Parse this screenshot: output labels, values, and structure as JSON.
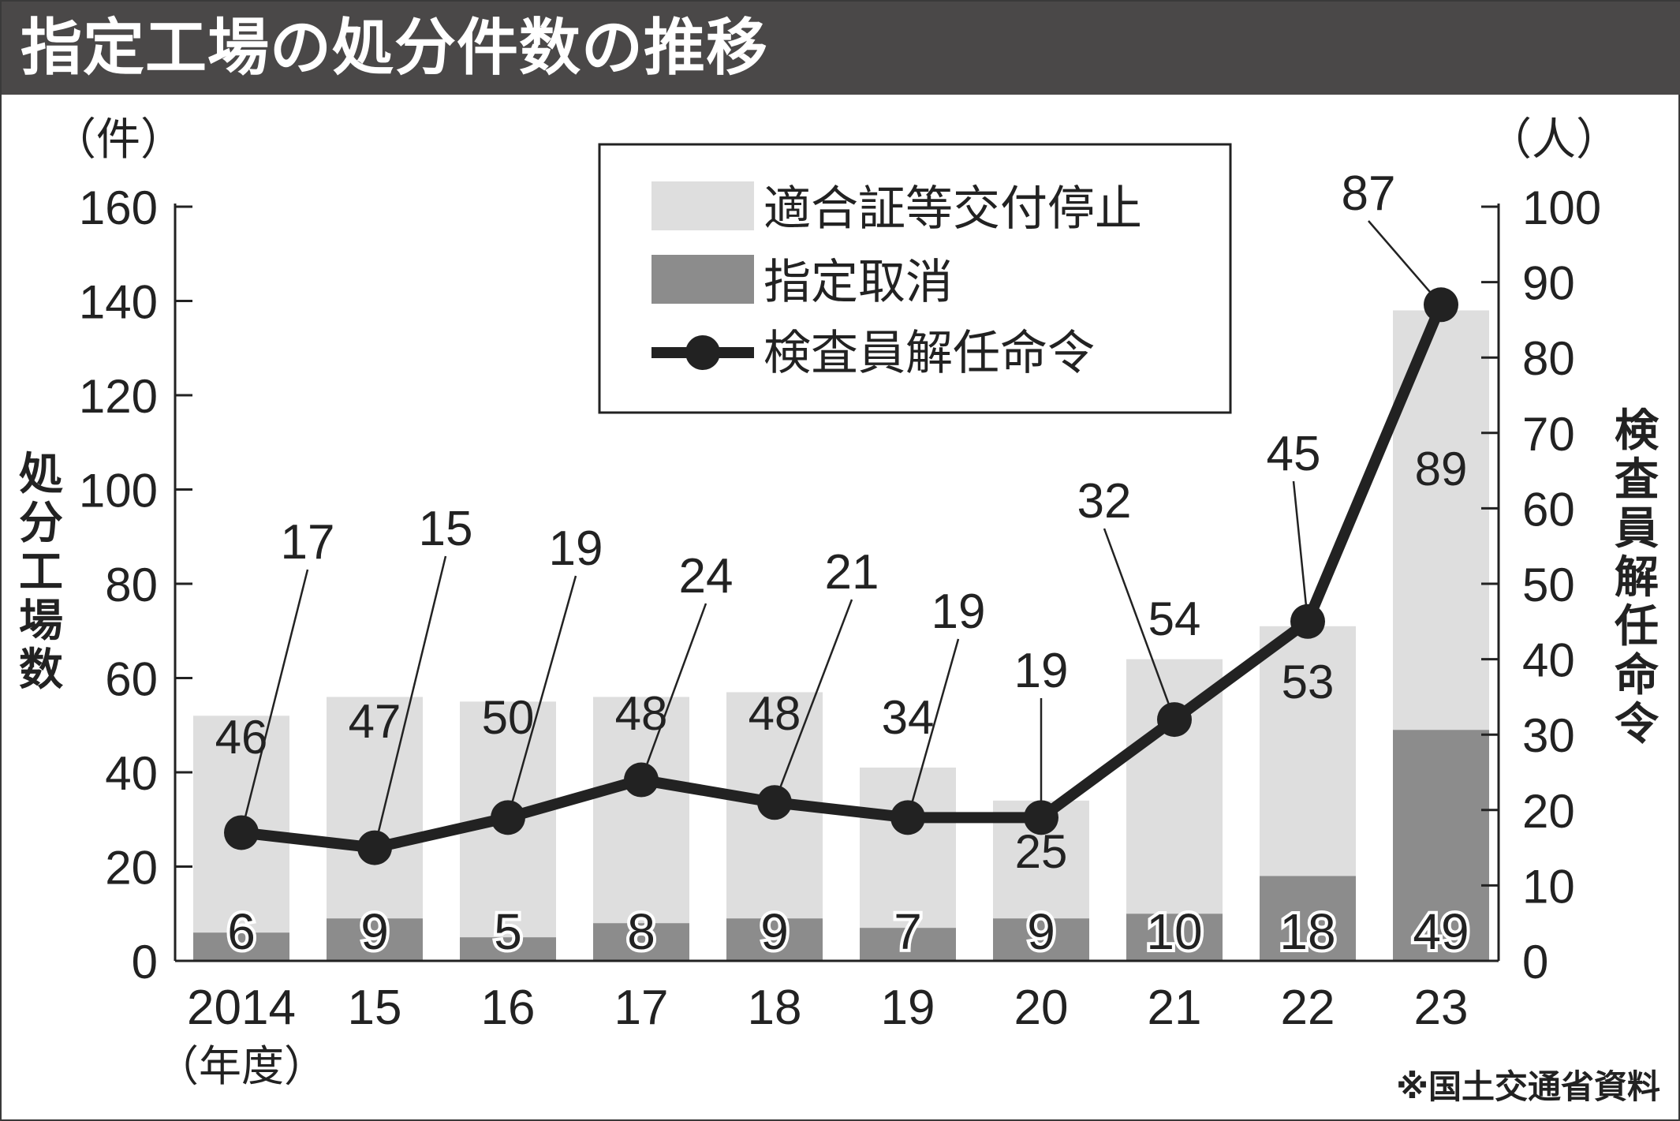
{
  "title": "指定工場の処分件数の推移",
  "source": "※国土交通省資料",
  "chart_data": {
    "type": "bar",
    "categories": [
      "2014",
      "15",
      "16",
      "17",
      "18",
      "19",
      "20",
      "21",
      "22",
      "23"
    ],
    "x_unit_label": "（年度）",
    "series": [
      {
        "name": "指定取消",
        "type": "bar",
        "stack": "total",
        "axis": "left",
        "color": "#8c8c8c",
        "values": [
          6,
          9,
          5,
          8,
          9,
          7,
          9,
          10,
          18,
          49
        ]
      },
      {
        "name": "適合証等交付停止",
        "type": "bar",
        "stack": "total",
        "axis": "left",
        "color": "#dedede",
        "values": [
          46,
          47,
          50,
          48,
          48,
          34,
          25,
          54,
          53,
          89
        ]
      },
      {
        "name": "検査員解任命令",
        "type": "line",
        "axis": "right",
        "color": "#222222",
        "values": [
          17,
          15,
          19,
          24,
          21,
          19,
          19,
          32,
          45,
          87
        ]
      }
    ],
    "y_left": {
      "label": "処分工場数",
      "unit": "（件）",
      "ylim": [
        0,
        160
      ],
      "ticks": [
        "0",
        "20",
        "40",
        "60",
        "80",
        "100",
        "120",
        "140",
        "160"
      ]
    },
    "y_right": {
      "label": "検査員解任命令",
      "unit": "（人）",
      "ylim": [
        0,
        100
      ],
      "ticks": [
        "0",
        "10",
        "20",
        "30",
        "40",
        "50",
        "60",
        "70",
        "80",
        "90",
        "100"
      ]
    },
    "legend": {
      "placement": "top-center"
    },
    "grid": false
  }
}
